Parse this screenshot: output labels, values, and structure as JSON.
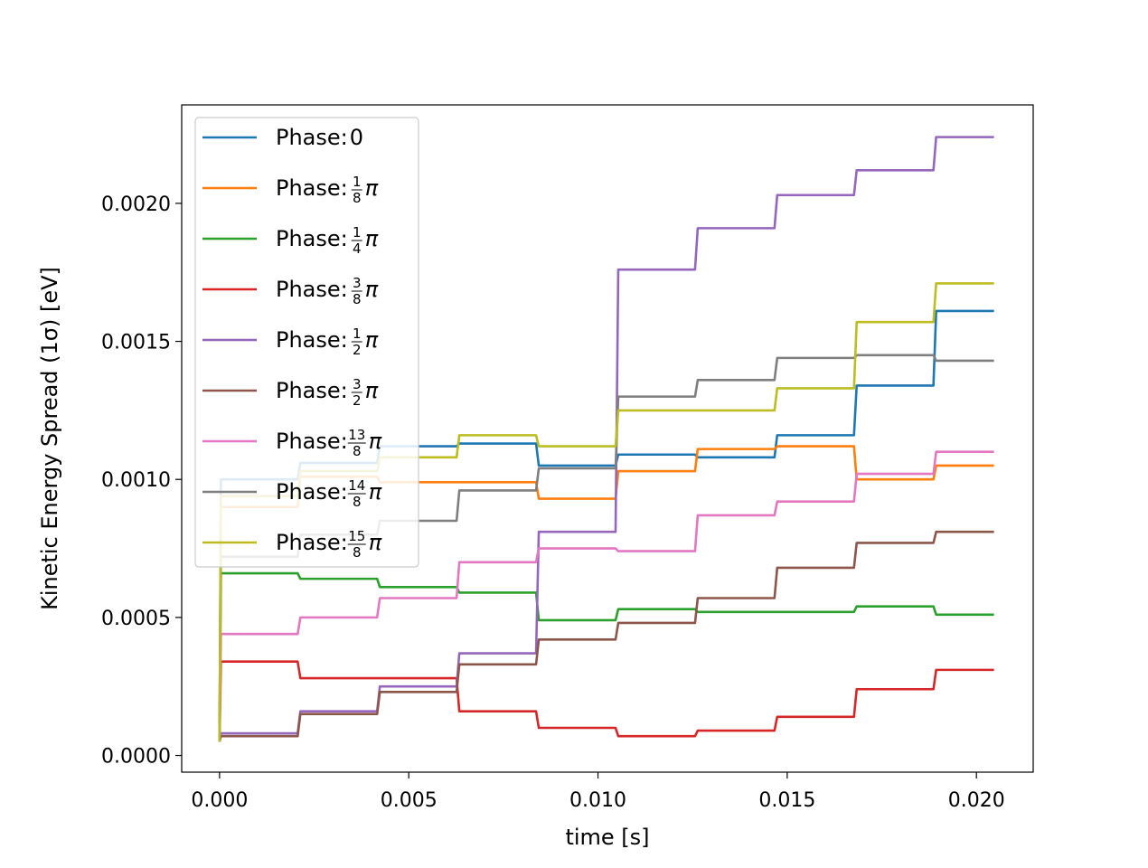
{
  "chart_data": {
    "type": "line",
    "xlabel": "time [s]",
    "ylabel": "Kinetic Energy Spread (1σ) [eV]",
    "xlim": [
      -0.001,
      0.0215
    ],
    "ylim": [
      -6.05e-05,
      0.0023567
    ],
    "x_ticks": [
      0.0,
      0.005,
      0.01,
      0.015,
      0.02
    ],
    "x_tick_labels": [
      "0.000",
      "0.005",
      "0.010",
      "0.015",
      "0.020"
    ],
    "y_ticks": [
      0.0,
      0.0005,
      0.001,
      0.0015,
      0.002
    ],
    "y_tick_labels": [
      "0.0000",
      "0.0005",
      "0.0010",
      "0.0015",
      "0.0020"
    ],
    "legend_position": "upper-left",
    "steps_at": [
      0.0,
      0.0021,
      0.0042,
      0.0063,
      0.0084,
      0.0105,
      0.0126,
      0.0147,
      0.0168,
      0.0189,
      0.0205
    ],
    "series": [
      {
        "name": "Phase: 0",
        "prefix": "Phase: ",
        "label_plain": "0",
        "color": "#1f77b4",
        "values": [
          0.001,
          0.00106,
          0.00112,
          0.00113,
          0.00105,
          0.00109,
          0.00108,
          0.00116,
          0.00134,
          0.00161
        ]
      },
      {
        "name": "Phase: 1/8 π",
        "prefix": "Phase: ",
        "frac": [
          "1",
          "8"
        ],
        "color": "#ff7f0e",
        "values": [
          0.0009,
          0.00101,
          0.00099,
          0.00099,
          0.00093,
          0.00103,
          0.00111,
          0.00112,
          0.001,
          0.00105
        ]
      },
      {
        "name": "Phase: 1/4 π",
        "prefix": "Phase: ",
        "frac": [
          "1",
          "4"
        ],
        "color": "#2ca02c",
        "values": [
          0.00066,
          0.00064,
          0.00061,
          0.00059,
          0.00049,
          0.00053,
          0.00052,
          0.00052,
          0.00054,
          0.00051
        ]
      },
      {
        "name": "Phase: 3/8 π",
        "prefix": "Phase: ",
        "frac": [
          "3",
          "8"
        ],
        "color": "#d62728",
        "values": [
          0.00034,
          0.00028,
          0.00028,
          0.00016,
          0.0001,
          7e-05,
          9e-05,
          0.00014,
          0.00024,
          0.00031
        ]
      },
      {
        "name": "Phase: 1/2 π",
        "prefix": "Phase: ",
        "frac": [
          "1",
          "2"
        ],
        "color": "#9467bd",
        "values": [
          8e-05,
          0.00016,
          0.00025,
          0.00037,
          0.00081,
          0.00176,
          0.00191,
          0.00203,
          0.00212,
          0.00224
        ]
      },
      {
        "name": "Phase: 3/2 π",
        "prefix": "Phase: ",
        "frac": [
          "3",
          "2"
        ],
        "color": "#8c564b",
        "values": [
          7e-05,
          0.00015,
          0.00023,
          0.00033,
          0.00042,
          0.00048,
          0.00057,
          0.00068,
          0.00077,
          0.00081
        ]
      },
      {
        "name": "Phase: 13/8 π",
        "prefix": "Phase: ",
        "frac": [
          "13",
          "8"
        ],
        "color": "#e377c2",
        "values": [
          0.00044,
          0.0005,
          0.00057,
          0.0007,
          0.00075,
          0.00074,
          0.00087,
          0.00092,
          0.00102,
          0.0011
        ]
      },
      {
        "name": "Phase: 14/8 π",
        "prefix": "Phase: ",
        "frac": [
          "14",
          "8"
        ],
        "color": "#7f7f7f",
        "values": [
          0.00072,
          0.0008,
          0.00085,
          0.00096,
          0.00104,
          0.0013,
          0.00136,
          0.00144,
          0.00145,
          0.00143
        ]
      },
      {
        "name": "Phase: 15/8 π",
        "prefix": "Phase: ",
        "frac": [
          "15",
          "8"
        ],
        "color": "#bcbd22",
        "values": [
          0.00094,
          0.00103,
          0.00108,
          0.00116,
          0.00112,
          0.00125,
          0.00125,
          0.00133,
          0.00157,
          0.00171
        ]
      }
    ]
  }
}
